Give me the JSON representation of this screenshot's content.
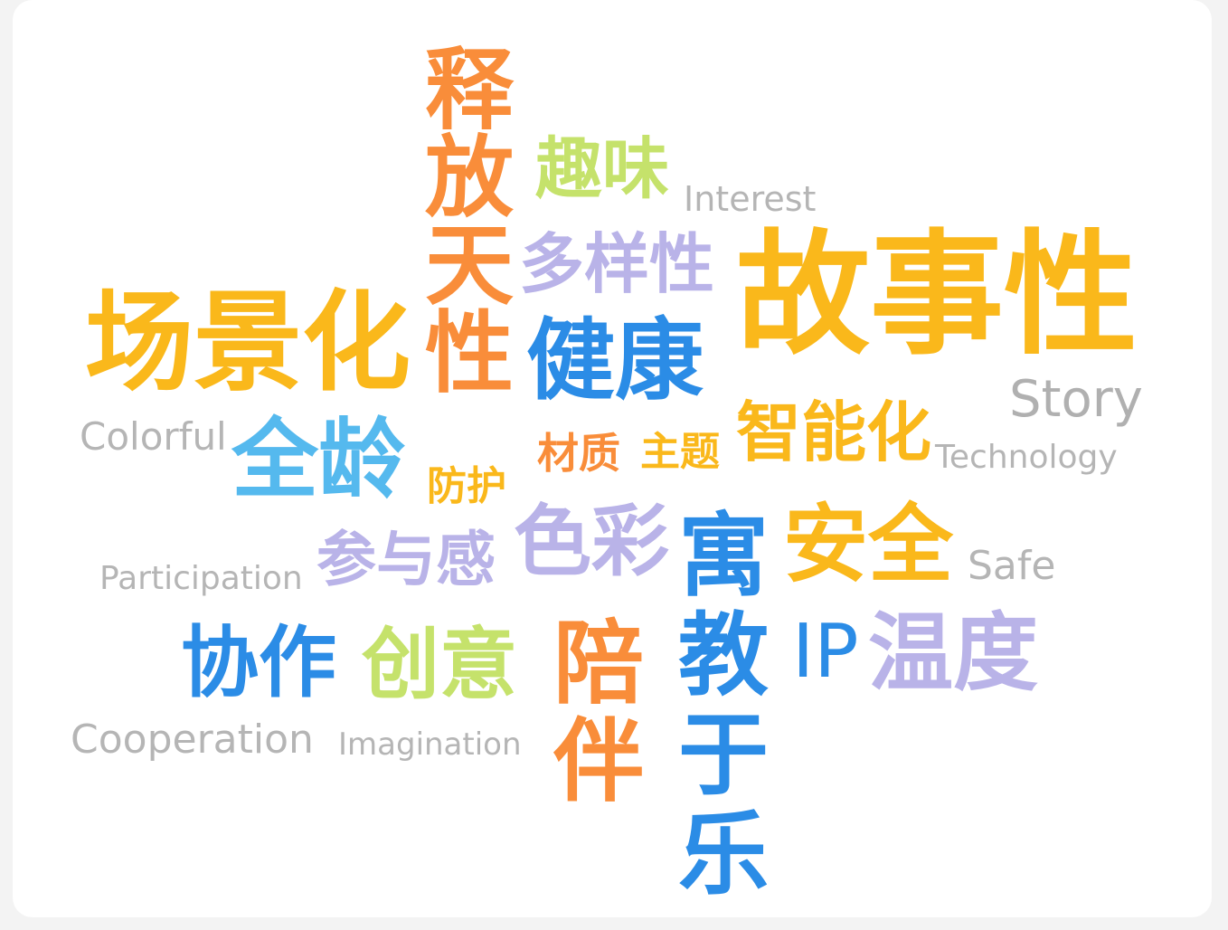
{
  "colors": {
    "background": "#ffffff",
    "orange": "#f98d3a",
    "yellow": "#fab81b",
    "blue": "#2b8ce6",
    "light_blue": "#55b9ee",
    "lime": "#c5e26b",
    "lavender": "#b9b3e8",
    "gray": "#b5b5b5"
  },
  "words": {
    "shifang_tianxing": "释放天性",
    "quwei": "趣味",
    "interest": "Interest",
    "duoyangxing": "多样性",
    "gushixing": "故事性",
    "changjinghua": "场景化",
    "jiankang": "健康",
    "story": "Story",
    "colorful": "Colorful",
    "quanling": "全龄",
    "caizhi": "材质",
    "zhuti": "主题",
    "zhinenghua": "智能化",
    "technology": "Technology",
    "fanghu": "防护",
    "secai": "色彩",
    "yujiao_yule": "寓教于乐",
    "anquan": "安全",
    "safe": "Safe",
    "participation": "Participation",
    "canyugan": "参与感",
    "xiezuo": "协作",
    "chuangyi": "创意",
    "peiban": "陪伴",
    "ip": "IP",
    "wendu": "温度",
    "cooperation": "Cooperation",
    "imagination": "Imagination"
  }
}
